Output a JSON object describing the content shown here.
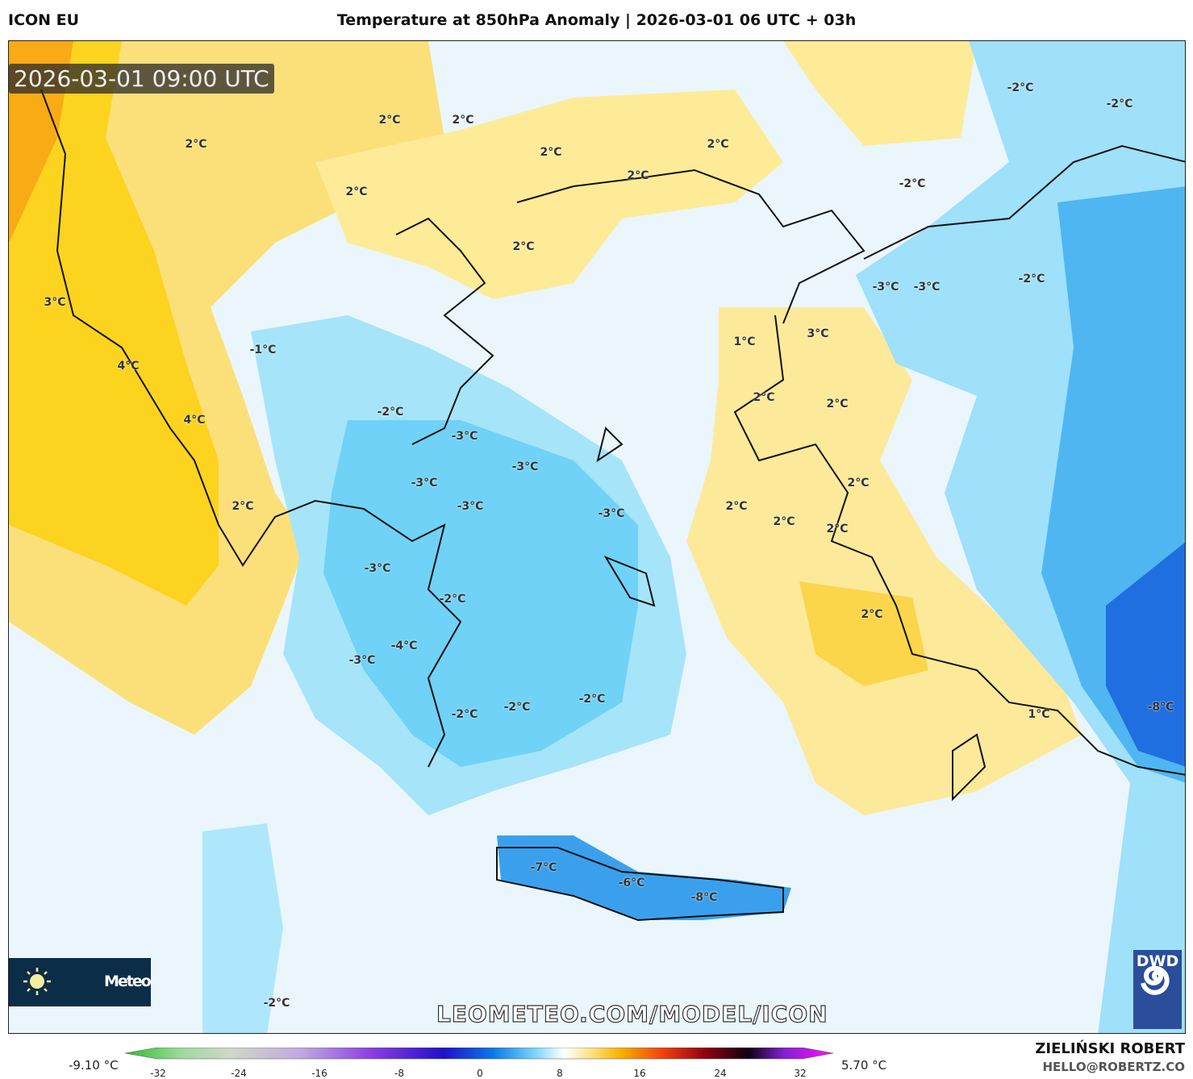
{
  "header": {
    "model": "ICON EU",
    "title": "Temperature at 850hPa Anomaly | 2026-03-01 06 UTC + 03h"
  },
  "map": {
    "valid_time": "2026-03-01 09:00 UTC",
    "labels": [
      "2°C",
      "2°C",
      "2°C",
      "2°C",
      "2°C",
      "2°C",
      "2°C",
      "2°C",
      "-2°C",
      "-2°C",
      "-2°C",
      "-2°C",
      "-3°C",
      "-3°C",
      "3°C",
      "1°C",
      "3°C",
      "-1°C",
      "4°C",
      "2°C",
      "2°C",
      "4°C",
      "-2°C",
      "-3°C",
      "-3°C",
      "-3°C",
      "-3°C",
      "-3°C",
      "2°C",
      "2°C",
      "2°C",
      "2°C",
      "2°C",
      "-3°C",
      "-2°C",
      "2°C",
      "-4°C",
      "-3°C",
      "-2°C",
      "-2°C",
      "-2°C",
      "1°C",
      "-8°C",
      "-7°C",
      "-6°C",
      "-8°C",
      "-2°C"
    ],
    "brand_text": "Meteo",
    "watermark": "LEOMETEO.COM/MODEL/ICON",
    "dwd_logo": "DWD",
    "colors": {
      "warm": "#fbd54a",
      "cool": "#7fd6f7",
      "cold": "#1f6fe0",
      "background": "#eaf6fc"
    }
  },
  "colorbar": {
    "min_label": "-9.10 °C",
    "max_label": "5.70 °C",
    "ticks": [
      "-32",
      "-24",
      "-16",
      "-8",
      "0",
      "8",
      "16",
      "24",
      "32"
    ],
    "unit": "°C"
  },
  "credits": {
    "author": "ZIELIŃSKI ROBERT",
    "email": "HELLO@ROBERTZ.CO"
  }
}
